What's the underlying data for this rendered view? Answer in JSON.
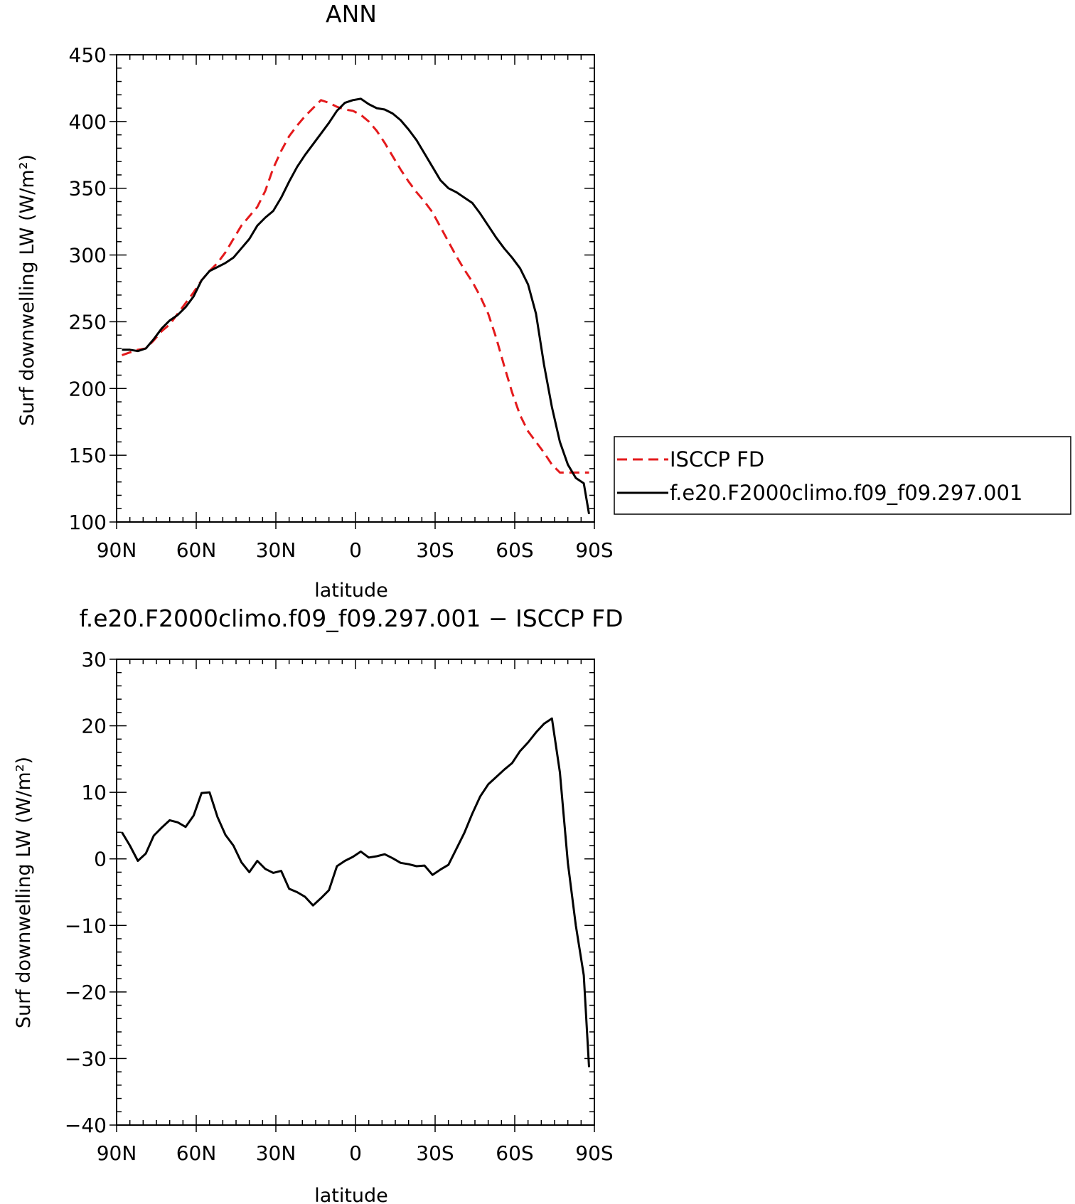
{
  "colors": {
    "isccp": "#e41a1c",
    "model": "#000000",
    "axis": "#000000"
  },
  "chart_data": [
    {
      "type": "line",
      "title": "ANN",
      "xlabel": "latitude",
      "ylabel": "Surf downwelling LW (W/m²)",
      "xlim": [
        90,
        -90
      ],
      "ylim": [
        100,
        450
      ],
      "xticks": [
        90,
        60,
        30,
        0,
        -30,
        -60,
        -90
      ],
      "xtick_labels": [
        "90N",
        "60N",
        "30N",
        "0",
        "30S",
        "60S",
        "90S"
      ],
      "yticks": [
        100,
        150,
        200,
        250,
        300,
        350,
        400,
        450
      ],
      "ytick_labels": [
        "100",
        "150",
        "200",
        "250",
        "300",
        "350",
        "400",
        "450"
      ],
      "legend": {
        "position": "right",
        "entries": [
          "ISCCP FD",
          "f.e20.F2000climo.f09_f09.297.001"
        ]
      },
      "series": [
        {
          "name": "ISCCP FD",
          "style": "dashed",
          "color": "#e41a1c",
          "x": [
            88,
            85,
            82,
            79,
            76,
            73,
            70,
            67,
            64,
            61,
            58,
            55,
            52,
            49,
            46,
            43,
            40,
            37,
            34,
            31,
            28,
            25,
            22,
            19,
            16,
            13,
            10,
            7,
            4,
            1,
            -2,
            -5,
            -8,
            -11,
            -14,
            -17,
            -20,
            -23,
            -26,
            -29,
            -32,
            -35,
            -38,
            -41,
            -44,
            -47,
            -50,
            -53,
            -56,
            -59,
            -62,
            -65,
            -68,
            -71,
            -74,
            -77,
            -80,
            -83,
            -86,
            -88
          ],
          "y": [
            225,
            227,
            229,
            230,
            236,
            243,
            248,
            256,
            264,
            272,
            281,
            288,
            294,
            302,
            312,
            322,
            329,
            336,
            348,
            365,
            378,
            389,
            397,
            404,
            410,
            416,
            414,
            411,
            409,
            408,
            405,
            400,
            393,
            384,
            374,
            364,
            355,
            347,
            340,
            332,
            321,
            310,
            299,
            289,
            280,
            269,
            256,
            238,
            217,
            197,
            180,
            168,
            160,
            152,
            143,
            137,
            137,
            137,
            137,
            137
          ]
        },
        {
          "name": "f.e20.F2000climo.f09_f09.297.001",
          "style": "solid",
          "color": "#000000",
          "x": [
            88,
            85,
            82,
            79,
            76,
            73,
            70,
            67,
            64,
            61,
            58,
            55,
            52,
            49,
            46,
            43,
            40,
            37,
            34,
            31,
            28,
            25,
            22,
            19,
            16,
            13,
            10,
            7,
            4,
            1,
            -2,
            -5,
            -8,
            -11,
            -14,
            -17,
            -20,
            -23,
            -26,
            -29,
            -32,
            -35,
            -38,
            -41,
            -44,
            -47,
            -50,
            -53,
            -56,
            -59,
            -62,
            -65,
            -68,
            -71,
            -74,
            -77,
            -80,
            -83,
            -86,
            -88
          ],
          "y": [
            229,
            229,
            228,
            230,
            237,
            245,
            251,
            255,
            261,
            269,
            281,
            288,
            291,
            294,
            298,
            305,
            312,
            322,
            328,
            333,
            343,
            355,
            366,
            375,
            383,
            391,
            399,
            408,
            414,
            416,
            417,
            413,
            410,
            409,
            406,
            401,
            394,
            386,
            376,
            366,
            356,
            350,
            347,
            343,
            339,
            331,
            322,
            313,
            305,
            298,
            290,
            278,
            256,
            218,
            186,
            160,
            143,
            133,
            129,
            106
          ]
        }
      ]
    },
    {
      "type": "line",
      "title": "f.e20.F2000climo.f09_f09.297.001 − ISCCP FD",
      "xlabel": "latitude",
      "ylabel": "Surf downwelling LW (W/m²)",
      "xlim": [
        90,
        -90
      ],
      "ylim": [
        -40,
        30
      ],
      "xticks": [
        90,
        60,
        30,
        0,
        -30,
        -60,
        -90
      ],
      "xtick_labels": [
        "90N",
        "60N",
        "30N",
        "0",
        "30S",
        "60S",
        "90S"
      ],
      "yticks": [
        -40,
        -30,
        -20,
        -10,
        0,
        10,
        20,
        30
      ],
      "ytick_labels": [
        "−40",
        "−30",
        "−20",
        "−10",
        "0",
        "10",
        "20",
        "30"
      ],
      "series": [
        {
          "style": "solid",
          "color": "#000000",
          "x": [
            88,
            85,
            82,
            79,
            76,
            73,
            70,
            67,
            64,
            61,
            58,
            55,
            52,
            49,
            46,
            43,
            40,
            37,
            34,
            31,
            28,
            25,
            22,
            19,
            16,
            13,
            10,
            7,
            4,
            1,
            -2,
            -5,
            -8,
            -11,
            -14,
            -17,
            -20,
            -23,
            -26,
            -29,
            -32,
            -35,
            -38,
            -41,
            -44,
            -47,
            -50,
            -53,
            -56,
            -59,
            -62,
            -65,
            -68,
            -71,
            -74,
            -77,
            -80,
            -83,
            -86,
            -88
          ],
          "y": [
            4,
            2,
            -0.3,
            0.8,
            3.5,
            4.7,
            5.8,
            5.5,
            4.8,
            6.5,
            9.9,
            10,
            6.3,
            3.6,
            2,
            -0.5,
            -2,
            -0.3,
            -1.5,
            -2.1,
            -1.8,
            -4.5,
            -5,
            -5.7,
            -7,
            -5.9,
            -4.7,
            -1.1,
            -0.3,
            0.3,
            1.1,
            0.2,
            0.4,
            0.7,
            0.1,
            -0.6,
            -0.8,
            -1.1,
            -1,
            -2.4,
            -1.6,
            -0.9,
            1.5,
            3.9,
            6.8,
            9.4,
            11.2,
            12.3,
            13.4,
            14.4,
            16.2,
            17.5,
            19,
            20.3,
            21.1,
            13,
            -0.6,
            -10,
            -17.5,
            -31.3
          ]
        }
      ]
    }
  ]
}
